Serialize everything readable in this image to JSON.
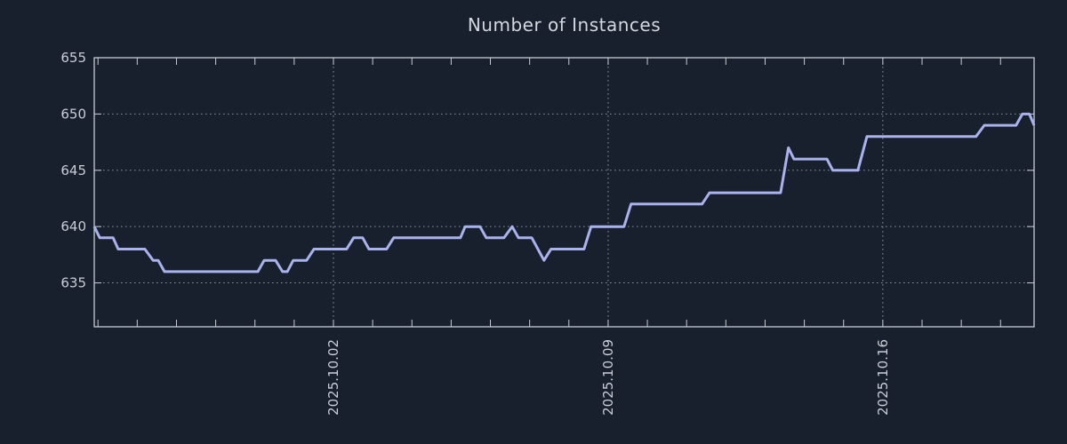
{
  "title": "Number of Instances",
  "colors": {
    "background": "#18202d",
    "line": "#aab2ee",
    "axis_border": "#c8ccd4",
    "grid_dots": "#8b919d",
    "title_text": "#d3d7de",
    "tick_label_text": "#c9ced6"
  },
  "chart_data": {
    "type": "line",
    "title": "Number of Instances",
    "xlabel": "",
    "ylabel": "",
    "grid": "dotted",
    "legend_position": "none",
    "x_unit_note": "days relative to chart left edge; vertical gridlines are weekly dates, minor ticks daily",
    "xlim": [
      0,
      23.95
    ],
    "ylim": [
      631.1,
      655.0
    ],
    "y_ticks": [
      635,
      640,
      645,
      650,
      655
    ],
    "x_gridlines": [
      {
        "label": "2025.10.02",
        "day": 6.095
      },
      {
        "label": "2025.10.09",
        "day": 13.095
      },
      {
        "label": "2025.10.16",
        "day": 20.095
      }
    ],
    "x_minor_tick_start_day": 0.095,
    "x_minor_tick_step_days": 1,
    "series": [
      {
        "name": "Number of Instances",
        "color": "#aab2ee",
        "points": [
          [
            0.0,
            640
          ],
          [
            0.14,
            639
          ],
          [
            0.48,
            639
          ],
          [
            0.61,
            638
          ],
          [
            1.29,
            638
          ],
          [
            1.5,
            637
          ],
          [
            1.63,
            637
          ],
          [
            1.79,
            636
          ],
          [
            4.17,
            636
          ],
          [
            4.33,
            637
          ],
          [
            4.62,
            637
          ],
          [
            4.8,
            636
          ],
          [
            4.92,
            636
          ],
          [
            5.07,
            637
          ],
          [
            5.41,
            637
          ],
          [
            5.6,
            638
          ],
          [
            6.43,
            638
          ],
          [
            6.61,
            639
          ],
          [
            6.84,
            639
          ],
          [
            7.0,
            638
          ],
          [
            7.45,
            638
          ],
          [
            7.63,
            639
          ],
          [
            9.33,
            639
          ],
          [
            9.45,
            640
          ],
          [
            9.83,
            640
          ],
          [
            9.99,
            639
          ],
          [
            10.44,
            639
          ],
          [
            10.65,
            640
          ],
          [
            10.81,
            639
          ],
          [
            11.15,
            639
          ],
          [
            11.46,
            637
          ],
          [
            11.64,
            638
          ],
          [
            12.48,
            638
          ],
          [
            12.66,
            640
          ],
          [
            13.5,
            640
          ],
          [
            13.68,
            642
          ],
          [
            15.49,
            642
          ],
          [
            15.68,
            643
          ],
          [
            17.49,
            643
          ],
          [
            17.69,
            647
          ],
          [
            17.83,
            646
          ],
          [
            18.67,
            646
          ],
          [
            18.82,
            645
          ],
          [
            19.46,
            645
          ],
          [
            19.69,
            648
          ],
          [
            22.47,
            648
          ],
          [
            22.68,
            649
          ],
          [
            23.49,
            649
          ],
          [
            23.65,
            650
          ],
          [
            23.83,
            650
          ],
          [
            23.95,
            649
          ]
        ]
      }
    ]
  }
}
